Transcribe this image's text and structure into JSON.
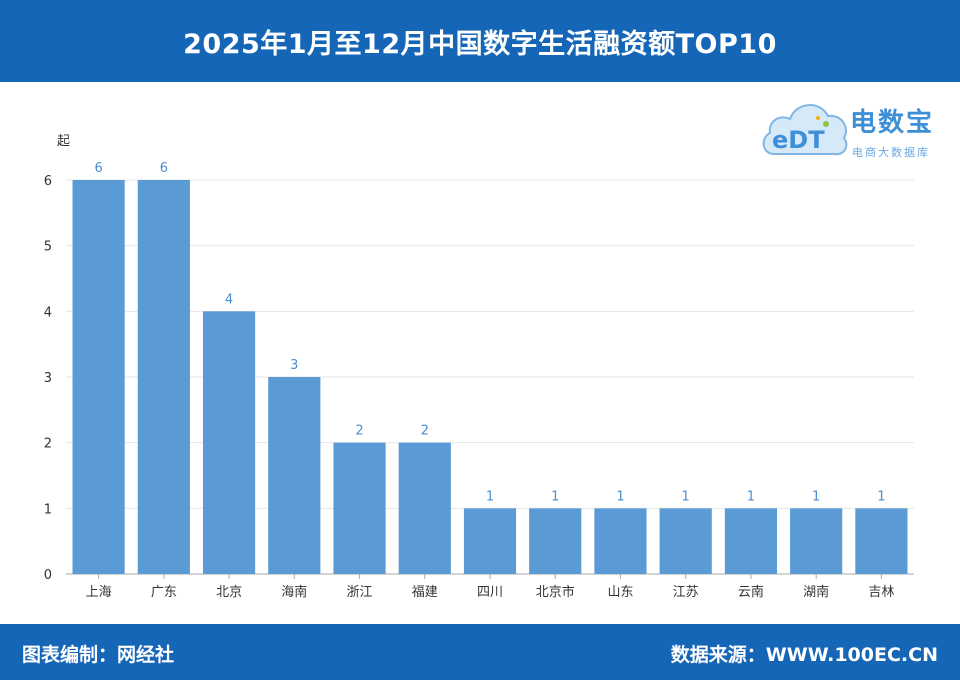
{
  "header": {
    "title": "2025年1月至12月中国数字生活融资额TOP10"
  },
  "logo": {
    "mark": "eDT",
    "name": "电数宝",
    "subtitle": "电商大数据库"
  },
  "footer": {
    "editor_label": "图表编制：网经社",
    "source_label": "数据来源：WWW.100EC.CN"
  },
  "colors": {
    "header_bg": "#1666b8",
    "bar": "#5b9bd5",
    "label": "#4a8ed0"
  },
  "chart_data": {
    "type": "bar",
    "title": "2025年1月至12月中国数字生活融资额TOP10",
    "xlabel": "",
    "ylabel": "起",
    "ylim": [
      0,
      6
    ],
    "yticks": [
      0,
      1,
      2,
      3,
      4,
      5,
      6
    ],
    "grid": true,
    "categories": [
      "上海",
      "广东",
      "北京",
      "海南",
      "浙江",
      "福建",
      "四川",
      "北京市",
      "山东",
      "江苏",
      "云南",
      "湖南",
      "吉林"
    ],
    "values": [
      6,
      6,
      4,
      3,
      2,
      2,
      1,
      1,
      1,
      1,
      1,
      1,
      1
    ]
  }
}
